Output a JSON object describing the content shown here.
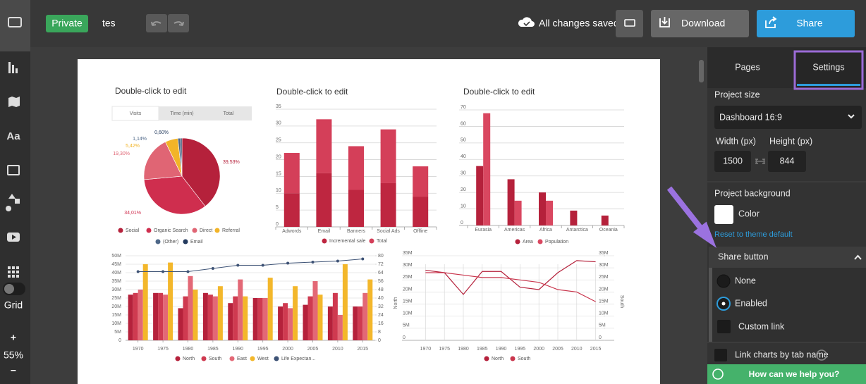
{
  "toolbar": {
    "privacy": "Private",
    "project_name": "tes",
    "save_status": "All changes saved",
    "download": "Download",
    "share": "Share"
  },
  "sidebar": {
    "grid": "Grid",
    "zoom_in": "+",
    "zoom": "55%",
    "zoom_out": "−"
  },
  "panel": {
    "tabs": [
      "Pages",
      "Settings"
    ],
    "project_size": "Project size",
    "size_preset": "Dashboard 16:9",
    "width_label": "Width (px)",
    "height_label": "Height (px)",
    "width": 1500,
    "height": 844,
    "background_title": "Project background",
    "color_label": "Color",
    "reset": "Reset to theme default",
    "share_button_title": "Share button",
    "share_options": [
      "None",
      "Enabled",
      "Custom link"
    ],
    "link_charts": "Link charts by tab name",
    "help": "How can we help you?"
  },
  "chart_data": [
    {
      "type": "pie",
      "title": "Double-click to edit",
      "tabs": [
        "Visits",
        "Time (min)",
        "Total"
      ],
      "categories": [
        "Social",
        "Organic Search",
        "Direct",
        "Referral",
        "(Other)",
        "Email"
      ],
      "values": [
        39.53,
        34.01,
        19.3,
        5.42,
        1.14,
        0.6
      ],
      "value_labels": [
        "39,53%",
        "34,01%",
        "19,30%",
        "5,42%",
        "1,14%",
        "0,60%"
      ],
      "colors": [
        "#b5213b",
        "#cf2e4e",
        "#e06574",
        "#f2b428",
        "#4e6788",
        "#233a5e"
      ]
    },
    {
      "type": "stacked-bar",
      "title": "Double-click to edit",
      "categories": [
        "Adwords",
        "Email",
        "Banners",
        "Social Ads",
        "Offline"
      ],
      "series": [
        {
          "name": "Incremental sale",
          "color": "#be2640",
          "values": [
            10,
            16,
            11,
            13,
            9
          ]
        },
        {
          "name": "Total",
          "color": "#d43f59",
          "values": [
            12,
            16,
            13,
            16,
            9
          ]
        }
      ],
      "ylim": [
        0,
        35
      ],
      "yticks": [
        0,
        5,
        10,
        15,
        20,
        25,
        30,
        35
      ],
      "grid": true
    },
    {
      "type": "bar",
      "title": "Double-click to edit",
      "categories": [
        "Eurasia",
        "Americas",
        "Africa",
        "Antarctica",
        "Oceania"
      ],
      "series": [
        {
          "name": "Area",
          "color": "#b5213b",
          "values": [
            36,
            28,
            20,
            9,
            6
          ]
        },
        {
          "name": "Population",
          "color": "#d94760",
          "values": [
            68,
            15,
            15,
            0,
            0
          ]
        }
      ],
      "ylim": [
        0,
        70
      ],
      "yticks": [
        0,
        10,
        20,
        30,
        40,
        50,
        60,
        70
      ],
      "grid": true
    },
    {
      "type": "combo",
      "categories": [
        1970,
        1975,
        1980,
        1985,
        1990,
        1995,
        2000,
        2005,
        2010,
        2015
      ],
      "series": [
        {
          "name": "North",
          "type": "bar",
          "color": "#b5213b",
          "values": [
            27,
            28,
            19,
            28,
            22,
            25,
            20,
            21,
            20,
            20
          ]
        },
        {
          "name": "South",
          "type": "bar",
          "color": "#cf3a50",
          "values": [
            28,
            28,
            26,
            27,
            26,
            25,
            22,
            26,
            28,
            20
          ]
        },
        {
          "name": "East",
          "type": "bar",
          "color": "#e36876",
          "values": [
            30,
            27,
            38,
            26,
            36,
            25,
            19,
            35,
            15,
            28
          ]
        },
        {
          "name": "West",
          "type": "bar",
          "color": "#f3b72b",
          "values": [
            45,
            46,
            30,
            32,
            26,
            37,
            32,
            27,
            45,
            36
          ]
        },
        {
          "name": "Life Expectan...",
          "type": "line",
          "axis": "y2",
          "color": "#3d5275",
          "values": [
            65,
            65,
            65,
            68,
            71,
            71,
            73,
            74,
            75,
            77
          ]
        }
      ],
      "ylim": [
        0,
        50
      ],
      "yticks": [
        0,
        {
          "value": 5,
          "label": "5M"
        },
        {
          "value": 10,
          "label": "10M"
        },
        {
          "value": 15,
          "label": "15M"
        },
        {
          "value": 20,
          "label": "20M"
        },
        {
          "value": 25,
          "label": "25M"
        },
        {
          "value": 30,
          "label": "30M"
        },
        {
          "value": 35,
          "label": "35M"
        },
        {
          "value": 40,
          "label": "40M"
        },
        {
          "value": 45,
          "label": "45M"
        },
        {
          "value": 50,
          "label": "50M"
        }
      ],
      "y2lim": [
        0,
        80
      ],
      "y2ticks": [
        0,
        8,
        16,
        24,
        32,
        40,
        48,
        56,
        64,
        72,
        80
      ],
      "grid": true
    },
    {
      "type": "line",
      "categories": [
        1970,
        1975,
        1980,
        1985,
        1990,
        1995,
        2000,
        2005,
        2010,
        2015
      ],
      "series": [
        {
          "name": "North",
          "color": "#b5213b",
          "values": [
            29,
            28,
            19,
            28.5,
            28.5,
            22,
            21,
            28,
            33,
            32.5
          ]
        },
        {
          "name": "South",
          "color": "#c9364d",
          "values": [
            28,
            28,
            27,
            26,
            26,
            25,
            24,
            21,
            20,
            16
          ]
        }
      ],
      "ylabel": "North",
      "y2label": "South",
      "ylim": [
        0,
        35
      ],
      "yticks": [
        0,
        {
          "value": 5,
          "label": "5M"
        },
        {
          "value": 10,
          "label": "10M"
        },
        {
          "value": 15,
          "label": "15M"
        },
        {
          "value": 20,
          "label": "20M"
        },
        {
          "value": 25,
          "label": "25M"
        },
        {
          "value": 30,
          "label": "30M"
        },
        {
          "value": 35,
          "label": "35M"
        }
      ],
      "y2lim": [
        0,
        35
      ],
      "y2ticks": [
        0,
        {
          "value": 5,
          "label": "5M"
        },
        {
          "value": 10,
          "label": "10M"
        },
        {
          "value": 15,
          "label": "15M"
        },
        {
          "value": 20,
          "label": "20M"
        },
        {
          "value": 25,
          "label": "25M"
        },
        {
          "value": 30,
          "label": "30M"
        },
        {
          "value": 35,
          "label": "35M"
        }
      ],
      "grid": true
    }
  ]
}
